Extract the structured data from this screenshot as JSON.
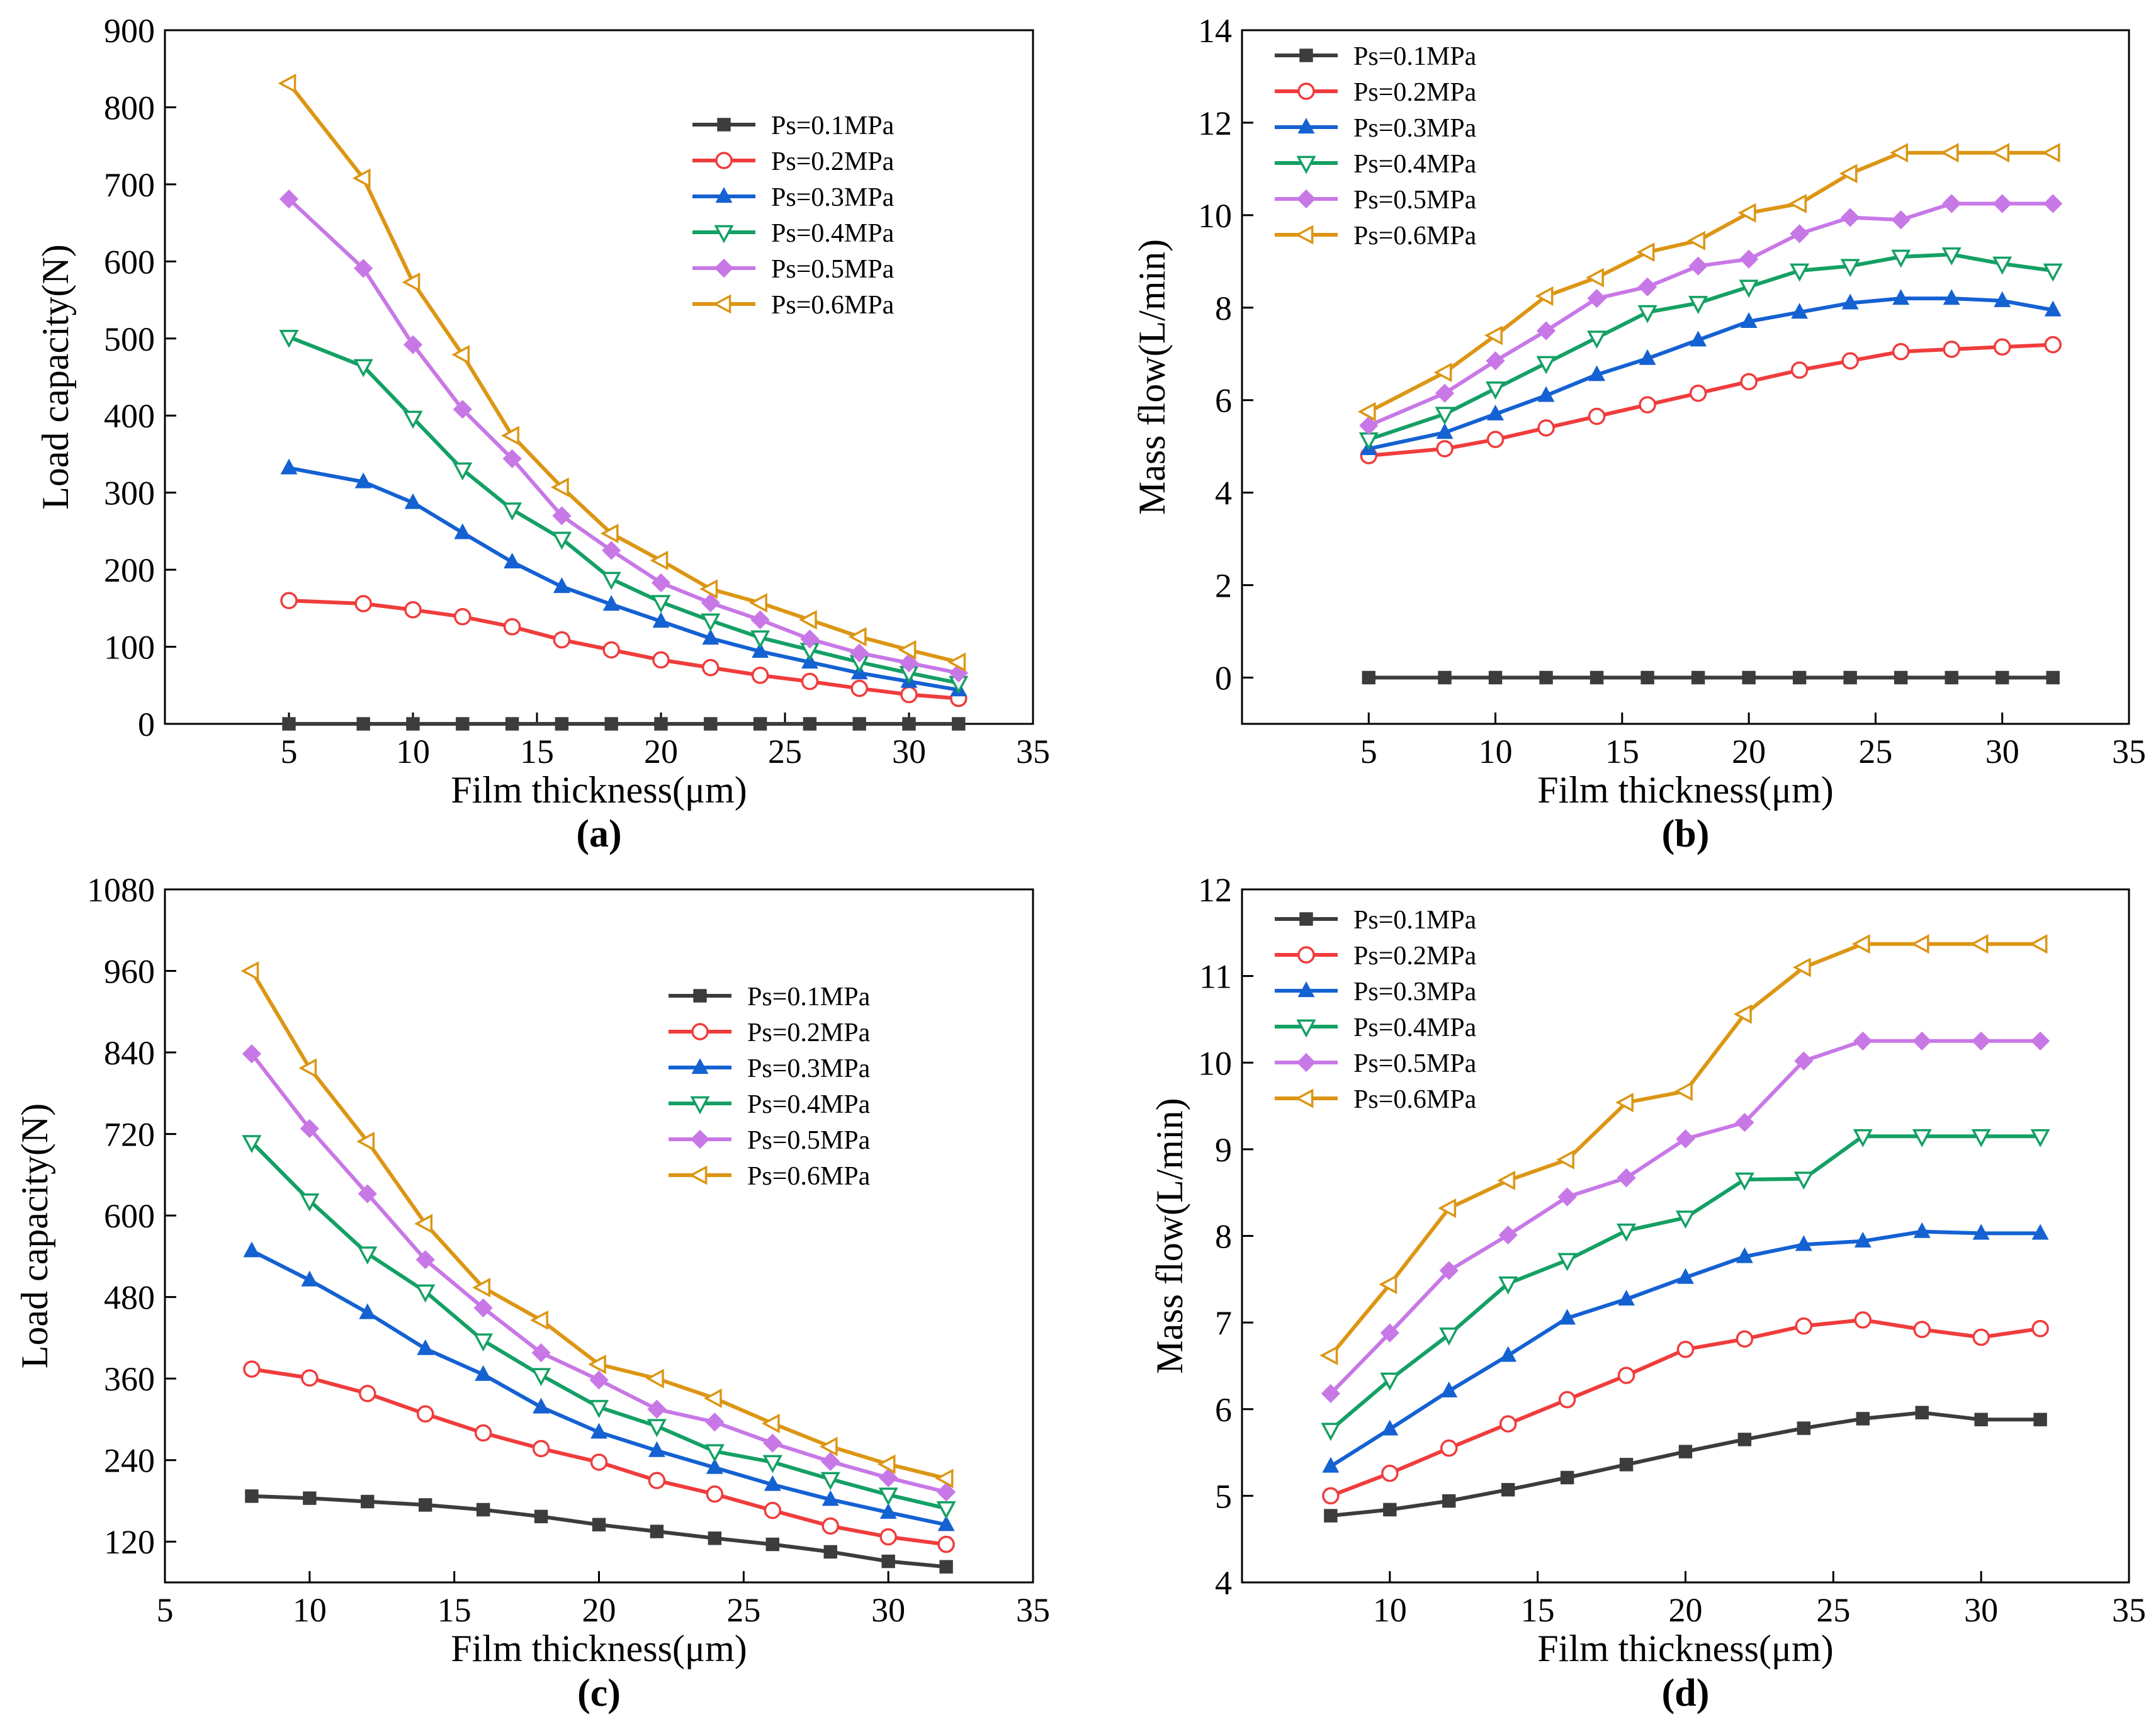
{
  "figure": {
    "series_colors": [
      "#3c3c3c",
      "#f03c3c",
      "#1461d2",
      "#14a064",
      "#c878e6",
      "#dc9614"
    ],
    "series_markers": [
      "square",
      "circle-open",
      "triangle-up",
      "triangle-down-open",
      "diamond",
      "triangle-left-open"
    ]
  },
  "chart_data": [
    {
      "type": "line",
      "panel": "(a)",
      "panel_letter": "a",
      "xlabel": "Film thickness(μm)",
      "ylabel": "Load capacity(N)",
      "xlim": [
        0,
        35
      ],
      "ylim": [
        0,
        900
      ],
      "xticks": [
        5,
        10,
        15,
        20,
        25,
        30,
        35
      ],
      "yticks": [
        0,
        100,
        200,
        300,
        400,
        500,
        600,
        700,
        800,
        900
      ],
      "legend_position": "upper-right",
      "x": [
        5,
        8,
        10,
        12,
        14,
        16,
        18,
        20,
        22,
        24,
        26,
        28,
        30,
        32
      ],
      "series": [
        {
          "name": "Ps=0.1MPa",
          "values": [
            0,
            0,
            0,
            0,
            0,
            0,
            0,
            0,
            0,
            0,
            0,
            0,
            0,
            0
          ]
        },
        {
          "name": "Ps=0.2MPa",
          "values": [
            160,
            156,
            148,
            139,
            126,
            109,
            96,
            83,
            73,
            63,
            55,
            46,
            38,
            33
          ]
        },
        {
          "name": "Ps=0.3MPa",
          "values": [
            332,
            314,
            287,
            248,
            210,
            178,
            155,
            133,
            111,
            94,
            80,
            66,
            55,
            44
          ]
        },
        {
          "name": "Ps=0.4MPa",
          "values": [
            502,
            464,
            397,
            330,
            278,
            240,
            188,
            158,
            134,
            112,
            96,
            80,
            66,
            53
          ]
        },
        {
          "name": "Ps=0.5MPa",
          "values": [
            681,
            591,
            492,
            408,
            344,
            270,
            225,
            183,
            157,
            135,
            110,
            92,
            79,
            66
          ]
        },
        {
          "name": "Ps=0.6MPa",
          "values": [
            831,
            708,
            573,
            479,
            374,
            307,
            247,
            212,
            175,
            157,
            135,
            113,
            96,
            80
          ]
        }
      ]
    },
    {
      "type": "line",
      "panel": "(b)",
      "panel_letter": "b",
      "xlabel": "Film thickness(μm)",
      "ylabel": "Mass flow(L/min)",
      "xlim": [
        0,
        35
      ],
      "ylim": [
        -1,
        14
      ],
      "xticks": [
        5,
        10,
        15,
        20,
        25,
        30,
        35
      ],
      "yticks": [
        0,
        2,
        4,
        6,
        8,
        10,
        12,
        14
      ],
      "legend_position": "upper-left",
      "x": [
        5,
        8,
        10,
        12,
        14,
        16,
        18,
        20,
        22,
        24,
        26,
        28,
        30,
        32
      ],
      "series": [
        {
          "name": "Ps=0.1MPa",
          "values": [
            0,
            0,
            0,
            0,
            0,
            0,
            0,
            0,
            0,
            0,
            0,
            0,
            0,
            0
          ]
        },
        {
          "name": "Ps=0.2MPa",
          "values": [
            4.8,
            4.95,
            5.15,
            5.4,
            5.65,
            5.9,
            6.15,
            6.4,
            6.65,
            6.85,
            7.05,
            7.1,
            7.15,
            7.2
          ]
        },
        {
          "name": "Ps=0.3MPa",
          "values": [
            4.95,
            5.3,
            5.7,
            6.1,
            6.55,
            6.9,
            7.3,
            7.7,
            7.9,
            8.1,
            8.2,
            8.2,
            8.15,
            7.95
          ]
        },
        {
          "name": "Ps=0.4MPa",
          "values": [
            5.15,
            5.7,
            6.25,
            6.8,
            7.35,
            7.9,
            8.1,
            8.45,
            8.8,
            8.9,
            9.1,
            9.15,
            8.95,
            8.8
          ]
        },
        {
          "name": "Ps=0.5MPa",
          "values": [
            5.45,
            6.15,
            6.85,
            7.5,
            8.2,
            8.45,
            8.9,
            9.05,
            9.6,
            9.95,
            9.9,
            10.25,
            10.25,
            10.25
          ]
        },
        {
          "name": "Ps=0.6MPa",
          "values": [
            5.75,
            6.6,
            7.4,
            8.25,
            8.65,
            9.2,
            9.45,
            10.05,
            10.25,
            10.9,
            11.35,
            11.35,
            11.35,
            11.35
          ]
        }
      ]
    },
    {
      "type": "line",
      "panel": "(c)",
      "panel_letter": "c",
      "xlabel": "Film thickness(μm)",
      "ylabel": "Load capacity(N)",
      "xlim": [
        5,
        35
      ],
      "ylim": [
        60,
        1080
      ],
      "xticks": [
        5,
        10,
        15,
        20,
        25,
        30,
        35
      ],
      "yticks": [
        120,
        240,
        360,
        480,
        600,
        720,
        840,
        960,
        1080
      ],
      "legend_position": "upper-right",
      "x": [
        8,
        10,
        12,
        14,
        16,
        18,
        20,
        22,
        24,
        26,
        28,
        30,
        32
      ],
      "series": [
        {
          "name": "Ps=0.1MPa",
          "values": [
            187,
            184,
            179,
            174,
            167,
            157,
            145,
            135,
            125,
            116,
            105,
            91,
            83
          ]
        },
        {
          "name": "Ps=0.2MPa",
          "values": [
            374,
            361,
            338,
            308,
            280,
            257,
            237,
            210,
            190,
            166,
            143,
            127,
            116
          ]
        },
        {
          "name": "Ps=0.3MPa",
          "values": [
            548,
            505,
            457,
            404,
            366,
            318,
            281,
            254,
            229,
            204,
            182,
            163,
            145
          ]
        },
        {
          "name": "Ps=0.4MPa",
          "values": [
            708,
            622,
            544,
            488,
            416,
            365,
            318,
            290,
            253,
            237,
            212,
            189,
            169
          ]
        },
        {
          "name": "Ps=0.5MPa",
          "values": [
            838,
            728,
            632,
            535,
            464,
            398,
            358,
            315,
            296,
            265,
            238,
            214,
            193
          ]
        },
        {
          "name": "Ps=0.6MPa",
          "values": [
            960,
            817,
            709,
            588,
            494,
            446,
            381,
            360,
            331,
            294,
            260,
            234,
            213
          ]
        }
      ]
    },
    {
      "type": "line",
      "panel": "(d)",
      "panel_letter": "d",
      "xlabel": "Film thickness(μm)",
      "ylabel": "Mass flow(L/min)",
      "xlim": [
        5,
        35
      ],
      "ylim": [
        4,
        12
      ],
      "xticks": [
        10,
        15,
        20,
        25,
        30,
        35
      ],
      "yticks": [
        4,
        5,
        6,
        7,
        8,
        9,
        10,
        11,
        12
      ],
      "legend_position": "upper-left",
      "x": [
        8,
        10,
        12,
        14,
        16,
        18,
        20,
        22,
        24,
        26,
        28,
        30,
        32
      ],
      "series": [
        {
          "name": "Ps=0.1MPa",
          "values": [
            4.77,
            4.84,
            4.94,
            5.07,
            5.21,
            5.36,
            5.51,
            5.65,
            5.78,
            5.89,
            5.96,
            5.88,
            5.88
          ]
        },
        {
          "name": "Ps=0.2MPa",
          "values": [
            5.0,
            5.26,
            5.55,
            5.83,
            6.11,
            6.39,
            6.69,
            6.81,
            6.96,
            7.03,
            6.92,
            6.83,
            6.93
          ]
        },
        {
          "name": "Ps=0.3MPa",
          "values": [
            5.34,
            5.77,
            6.21,
            6.62,
            7.05,
            7.27,
            7.52,
            7.76,
            7.9,
            7.94,
            8.05,
            8.03,
            8.03
          ]
        },
        {
          "name": "Ps=0.4MPa",
          "values": [
            5.76,
            6.34,
            6.86,
            7.45,
            7.72,
            8.06,
            8.21,
            8.65,
            8.66,
            9.15,
            9.15,
            9.15,
            9.15
          ]
        },
        {
          "name": "Ps=0.5MPa",
          "values": [
            6.18,
            6.88,
            7.6,
            8.01,
            8.45,
            8.67,
            9.12,
            9.31,
            10.02,
            10.25,
            10.25,
            10.25,
            10.25
          ]
        },
        {
          "name": "Ps=0.6MPa",
          "values": [
            6.62,
            7.44,
            8.32,
            8.64,
            8.88,
            9.54,
            9.67,
            10.56,
            11.1,
            11.37,
            11.37,
            11.37,
            11.37
          ]
        }
      ]
    }
  ]
}
